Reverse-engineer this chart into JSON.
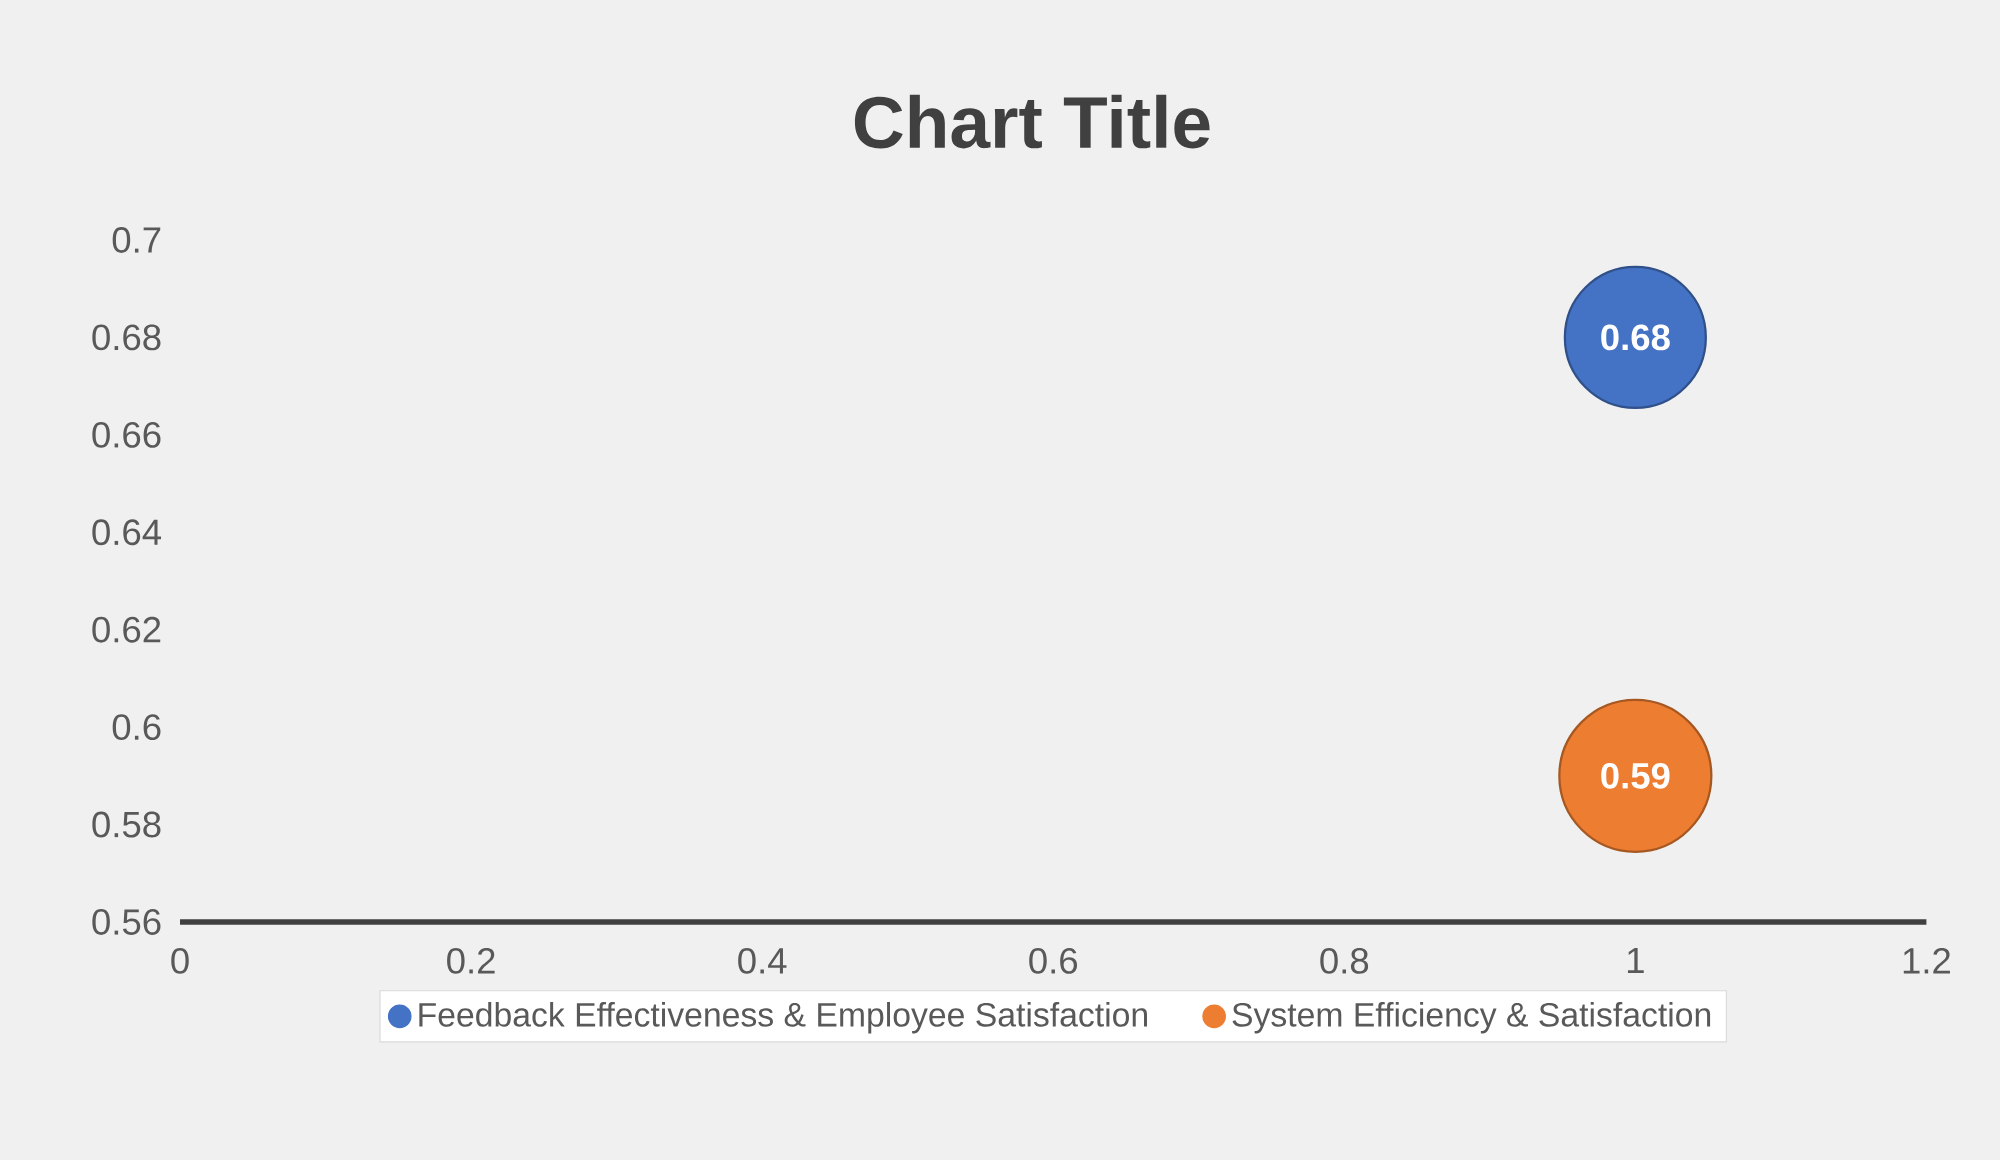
{
  "chart_data": {
    "type": "bubble",
    "title": "Chart Title",
    "xlim": [
      0,
      1.2
    ],
    "xticks": [
      0,
      0.2,
      0.4,
      0.6,
      0.8,
      1,
      1.2
    ],
    "ylim": [
      0.56,
      0.7
    ],
    "yticks": [
      0.56,
      0.58,
      0.6,
      0.62,
      0.64,
      0.66,
      0.68,
      0.7
    ],
    "series": [
      {
        "name": "Feedback Effectiveness & Employee Satisfaction",
        "color": "#4472c4",
        "x": [
          1
        ],
        "values": [
          0.68
        ],
        "sizes": [
          0.86
        ]
      },
      {
        "name": "System Efficiency & Satisfaction",
        "color": "#ed7d31",
        "x": [
          1
        ],
        "values": [
          0.59
        ],
        "sizes": [
          1
        ]
      }
    ],
    "data_labels": true,
    "legend": "bottom"
  }
}
